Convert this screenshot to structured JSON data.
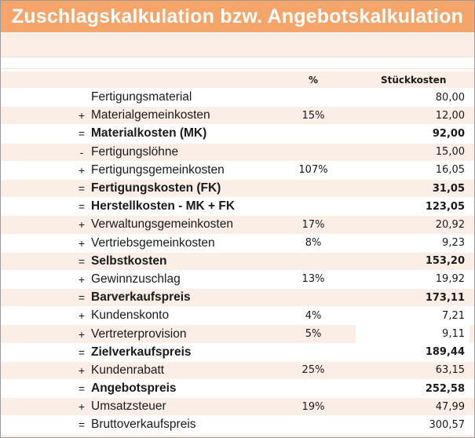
{
  "title": "Zuschlagskalkulation bzw. Angebotskalkulation",
  "header": {
    "pct": "%",
    "amount": "Stückkosten"
  },
  "rows": [
    {
      "op": "",
      "label": "Fertigungsmaterial",
      "pct": "",
      "value": "80,00",
      "bold": false
    },
    {
      "op": "+",
      "label": "Materialgemeinkosten",
      "pct": "15%",
      "value": "12,00",
      "bold": false
    },
    {
      "op": "=",
      "label": "Materialkosten (MK)",
      "pct": "",
      "value": "92,00",
      "bold": true
    },
    {
      "op": "-",
      "label": "Fertigungslöhne",
      "pct": "",
      "value": "15,00",
      "bold": false
    },
    {
      "op": "+",
      "label": "Fertigungsgemeinkosten",
      "pct": "107%",
      "value": "16,05",
      "bold": false
    },
    {
      "op": "=",
      "label": "Fertigungskosten (FK)",
      "pct": "",
      "value": "31,05",
      "bold": true
    },
    {
      "op": "=",
      "label": "Herstellkosten - MK + FK",
      "pct": "",
      "value": "123,05",
      "bold": true
    },
    {
      "op": "+",
      "label": "Verwaltungsgemeinkosten",
      "pct": "17%",
      "value": "20,92",
      "bold": false
    },
    {
      "op": "+",
      "label": "Vertriebsgemeinkosten",
      "pct": "8%",
      "value": "9,23",
      "bold": false
    },
    {
      "op": "=",
      "label": "Selbstkosten",
      "pct": "",
      "value": "153,20",
      "bold": true
    },
    {
      "op": "+",
      "label": "Gewinnzuschlag",
      "pct": "13%",
      "value": "19,92",
      "bold": false
    },
    {
      "op": "=",
      "label": "Barverkaufspreis",
      "pct": "",
      "value": "173,11",
      "bold": true
    },
    {
      "op": "+",
      "label": "Kundenskonto",
      "pct": "4%",
      "value": "7,21",
      "bold": false
    },
    {
      "op": "+",
      "label": "Vertreterprovision",
      "pct": "5%",
      "value": "9,11",
      "bold": false
    },
    {
      "op": "=",
      "label": "Zielverkaufspreis",
      "pct": "",
      "value": "189,44",
      "bold": true
    },
    {
      "op": "+",
      "label": "Kundenrabatt",
      "pct": "25%",
      "value": "63,15",
      "bold": false
    },
    {
      "op": "=",
      "label": "Angebotspreis",
      "pct": "",
      "value": "252,58",
      "bold": true
    },
    {
      "op": "+",
      "label": "Umsatzsteuer",
      "pct": "19%",
      "value": "47,99",
      "bold": false
    },
    {
      "op": "=",
      "label": "Bruttoverkaufspreis",
      "pct": "",
      "value": "300,57",
      "bold": false
    }
  ]
}
